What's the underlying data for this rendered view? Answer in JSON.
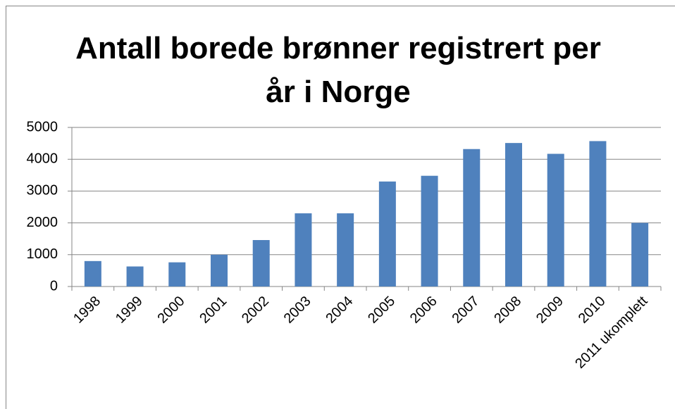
{
  "chart_data": {
    "type": "bar",
    "title": "Antall borede brønner registrert per år i Norge",
    "categories": [
      "1998",
      "1999",
      "2000",
      "2001",
      "2002",
      "2003",
      "2004",
      "2005",
      "2006",
      "2007",
      "2008",
      "2009",
      "2010",
      "2011 ukomplett"
    ],
    "values": [
      800,
      630,
      760,
      1000,
      1460,
      2300,
      2300,
      3300,
      3480,
      4320,
      4510,
      4170,
      4570,
      2000
    ],
    "color": "#4f81bd",
    "ylim": [
      0,
      5000
    ],
    "yticks": [
      0,
      1000,
      2000,
      3000,
      4000,
      5000
    ],
    "grid": true
  }
}
